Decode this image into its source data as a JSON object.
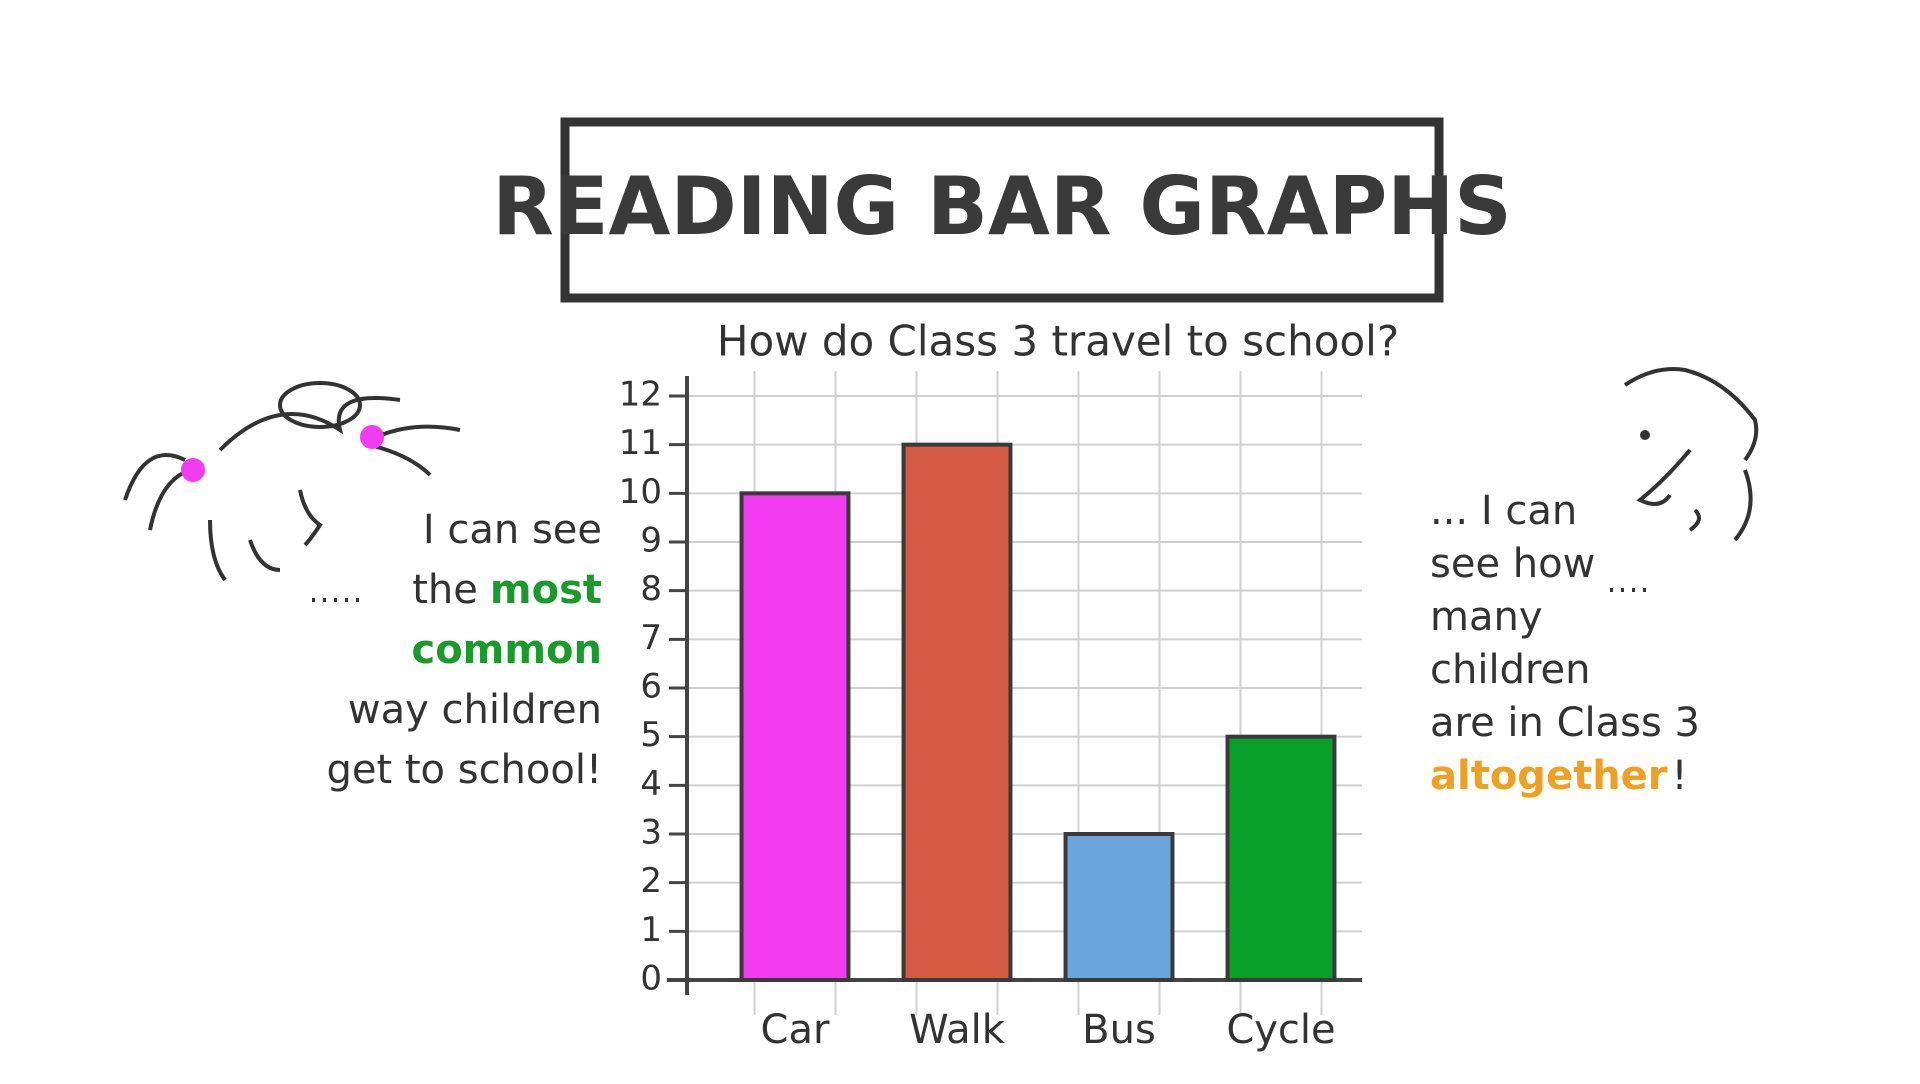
{
  "chart_data": {
    "type": "bar",
    "title": "READING BAR GRAPHS",
    "subtitle": "How do Class 3 travel to school?",
    "categories": [
      "Car",
      "Walk",
      "Bus",
      "Cycle"
    ],
    "values": [
      10,
      11,
      3,
      5
    ],
    "colors": [
      "#f23cf2",
      "#d45a44",
      "#6aa6dc",
      "#0a9e2a"
    ],
    "ylim": [
      0,
      12
    ],
    "yticks": [
      0,
      1,
      2,
      3,
      4,
      5,
      6,
      7,
      8,
      9,
      10,
      11,
      12
    ],
    "grid": true,
    "annotations": [
      {
        "lines": [
          [
            {
              "text": "I can see",
              "color": "#333333"
            }
          ],
          [
            {
              "text": "the",
              "color": "#333333"
            },
            {
              "text": "most",
              "color": "#1a9a2a"
            }
          ],
          [
            {
              "text": "common",
              "color": "#1a9a2a"
            }
          ],
          [
            {
              "text": "way children",
              "color": "#333333"
            }
          ],
          [
            {
              "text": "get to school!",
              "color": "#333333"
            }
          ]
        ]
      },
      {
        "lines": [
          [
            {
              "text": "... I can",
              "color": "#333333"
            }
          ],
          [
            {
              "text": "see how",
              "color": "#333333"
            }
          ],
          [
            {
              "text": "many",
              "color": "#333333"
            }
          ],
          [
            {
              "text": "children",
              "color": "#333333"
            }
          ],
          [
            {
              "text": "are in Class 3",
              "color": "#333333"
            }
          ],
          [
            {
              "text": "altogether",
              "color": "#f0a020"
            },
            {
              "text": "!",
              "color": "#333333"
            }
          ]
        ]
      }
    ]
  }
}
